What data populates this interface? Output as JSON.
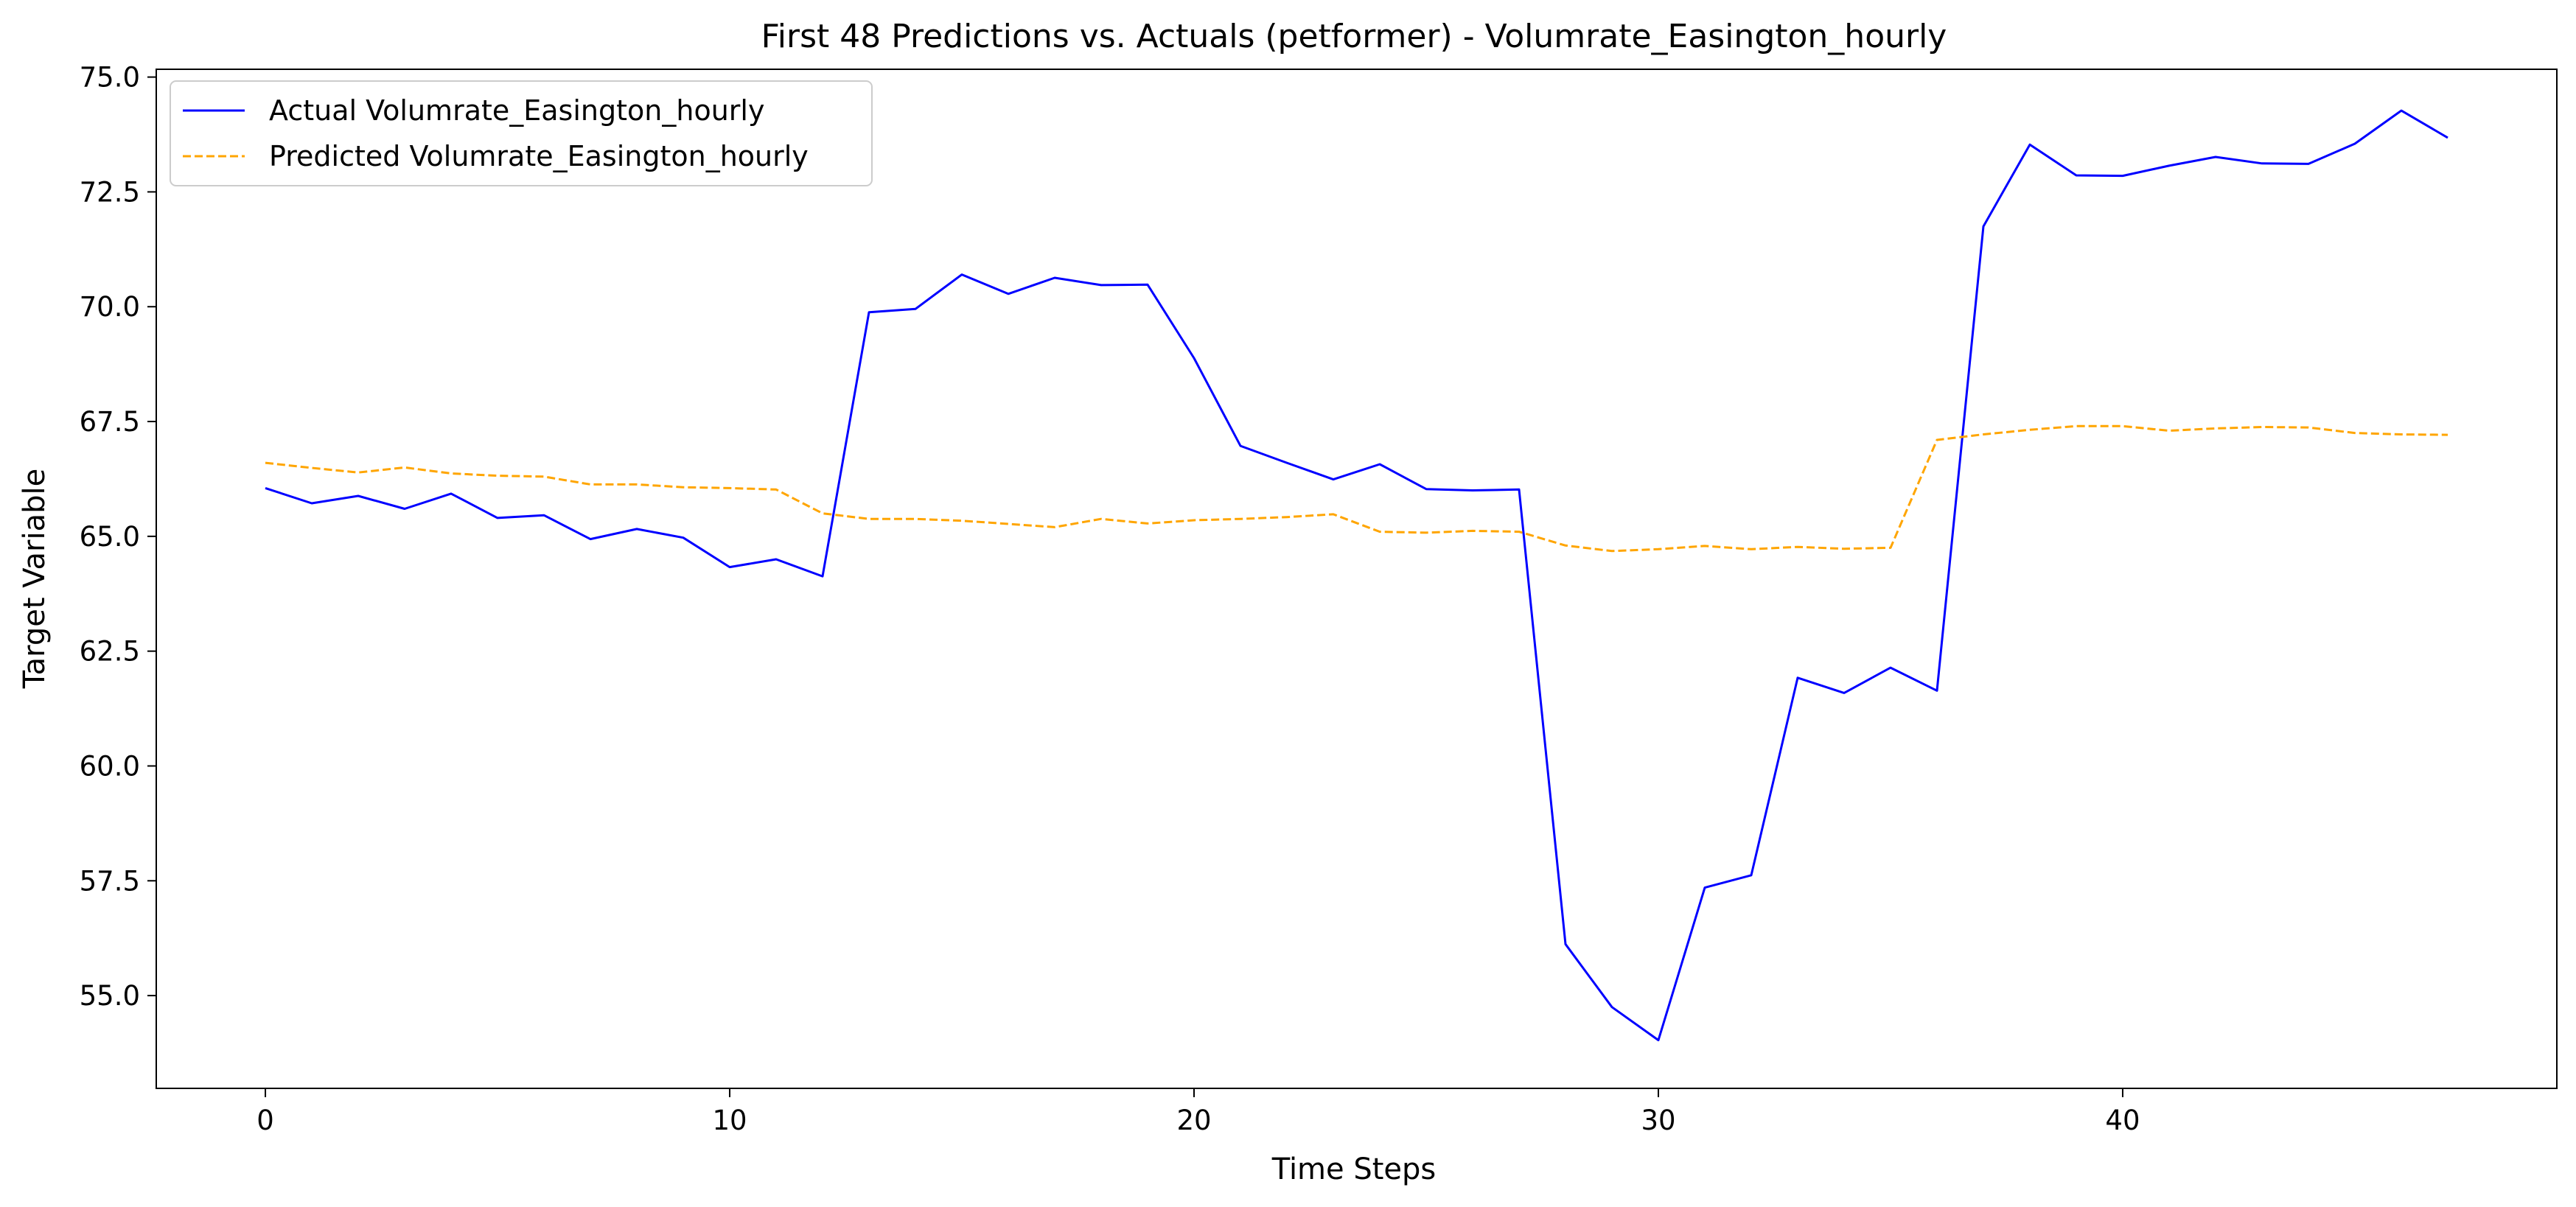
{
  "chart_data": {
    "type": "line",
    "title": "First 48 Predictions vs. Actuals (petformer) - Volumrate_Easington_hourly",
    "xlabel": "Time Steps",
    "ylabel": "Target Variable",
    "xlim": [
      -2.35,
      49.35
    ],
    "ylim": [
      52.98,
      75.17
    ],
    "xticks": [
      0,
      10,
      20,
      30,
      40
    ],
    "yticks": [
      55.0,
      57.5,
      60.0,
      62.5,
      65.0,
      67.5,
      70.0,
      72.5,
      75.0
    ],
    "grid": false,
    "legend": "upper left",
    "x": [
      0,
      1,
      2,
      3,
      4,
      5,
      6,
      7,
      8,
      9,
      10,
      11,
      12,
      13,
      14,
      15,
      16,
      17,
      18,
      19,
      20,
      21,
      22,
      23,
      24,
      25,
      26,
      27,
      28,
      29,
      30,
      31,
      32,
      33,
      34,
      35,
      36,
      37,
      38,
      39,
      40,
      41,
      42,
      43,
      44,
      45,
      46,
      47
    ],
    "series": [
      {
        "name": "Actual Volumrate_Easington_hourly",
        "color": "#0000ff",
        "style": "solid",
        "values": [
          66.05,
          65.72,
          65.88,
          65.6,
          65.93,
          65.4,
          65.46,
          64.94,
          65.16,
          64.97,
          64.33,
          64.5,
          64.13,
          69.88,
          69.95,
          70.7,
          70.28,
          70.63,
          70.47,
          70.48,
          68.88,
          66.97,
          66.6,
          66.24,
          66.57,
          66.03,
          66.0,
          66.02,
          56.12,
          54.75,
          54.03,
          57.35,
          57.62,
          61.92,
          61.59,
          62.14,
          61.64,
          71.75,
          73.53,
          72.86,
          72.85,
          73.07,
          73.26,
          73.12,
          73.11,
          73.55,
          74.27,
          73.68
        ]
      },
      {
        "name": "Predicted Volumrate_Easington_hourly",
        "color": "#ffa500",
        "style": "dashed",
        "values": [
          66.6,
          66.49,
          66.39,
          66.5,
          66.37,
          66.32,
          66.3,
          66.13,
          66.13,
          66.07,
          66.05,
          66.02,
          65.5,
          65.38,
          65.38,
          65.34,
          65.27,
          65.2,
          65.38,
          65.28,
          65.35,
          65.38,
          65.42,
          65.48,
          65.1,
          65.08,
          65.12,
          65.1,
          64.8,
          64.68,
          64.72,
          64.79,
          64.72,
          64.77,
          64.73,
          64.75,
          67.1,
          67.22,
          67.32,
          67.4,
          67.4,
          67.3,
          67.35,
          67.38,
          67.37,
          67.25,
          67.22,
          67.21
        ]
      }
    ]
  }
}
